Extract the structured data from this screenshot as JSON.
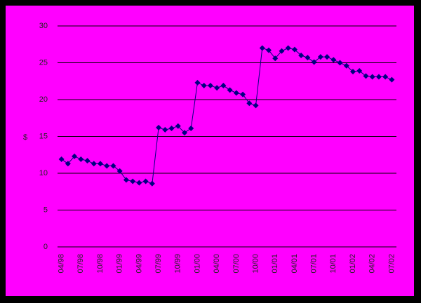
{
  "chart_data": {
    "type": "line",
    "y_label": "$",
    "categories": [
      "04/98",
      null,
      null,
      "07/98",
      null,
      null,
      "10/98",
      null,
      null,
      "01/99",
      null,
      null,
      "04/99",
      null,
      null,
      "07/99",
      null,
      null,
      "10/99",
      null,
      null,
      "01/00",
      null,
      null,
      "04/00",
      null,
      null,
      "07/00",
      null,
      null,
      "10/00",
      null,
      null,
      "01/01",
      null,
      null,
      "04/01",
      null,
      null,
      "07/01",
      null,
      null,
      "10/01",
      null,
      null,
      "01/02",
      null,
      null,
      "04/02",
      null,
      null,
      "07/02"
    ],
    "values": [
      11.9,
      11.3,
      12.3,
      11.9,
      11.7,
      11.3,
      11.3,
      11.0,
      11.0,
      10.3,
      9.1,
      8.9,
      8.7,
      8.9,
      8.6,
      16.2,
      15.9,
      16.1,
      16.4,
      15.5,
      16.1,
      22.3,
      21.9,
      21.9,
      21.6,
      21.9,
      21.3,
      20.9,
      20.7,
      19.5,
      19.2,
      27.0,
      26.7,
      25.6,
      26.6,
      27.0,
      26.8,
      26.0,
      25.7,
      25.1,
      25.8,
      25.8,
      25.4,
      25.0,
      24.6,
      23.8,
      23.9,
      23.2,
      23.1,
      23.1,
      23.1,
      22.7
    ],
    "color": "#000080",
    "background": "#ff00ff",
    "ylim": [
      0,
      30
    ],
    "yticks": [
      0,
      5,
      10,
      15,
      20,
      25,
      30
    ],
    "grid": true
  }
}
